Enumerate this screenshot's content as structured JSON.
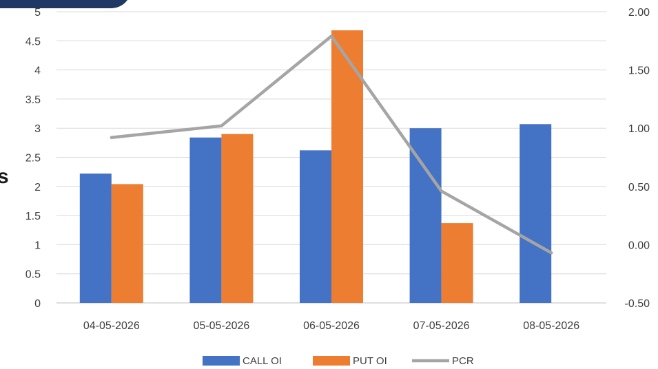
{
  "chart_data": {
    "type": "bar",
    "categories": [
      "04-05-2026",
      "05-05-2026",
      "06-05-2026",
      "07-05-2026",
      "08-05-2026"
    ],
    "series": [
      {
        "name": "CALL OI",
        "type": "bar",
        "axis": "left",
        "color": "#4472c4",
        "values": [
          2.22,
          2.84,
          2.62,
          3.0,
          3.07
        ]
      },
      {
        "name": "PUT OI",
        "type": "bar",
        "axis": "left",
        "color": "#ed7d31",
        "values": [
          2.04,
          2.9,
          4.68,
          1.37,
          0
        ]
      },
      {
        "name": "PCR",
        "type": "line",
        "axis": "right",
        "color": "#a5a5a5",
        "values": [
          0.92,
          1.02,
          1.79,
          0.46,
          -0.07
        ]
      }
    ],
    "y_left": {
      "min": 0,
      "max": 5,
      "ticks": [
        "0",
        "0.5",
        "1",
        "1.5",
        "2",
        "2.5",
        "3",
        "3.5",
        "4",
        "4.5",
        "5"
      ]
    },
    "y_right": {
      "min": -0.5,
      "max": 2.0,
      "ticks": [
        "-0.50",
        "0.00",
        "0.50",
        "1.00",
        "1.50",
        "2.00"
      ]
    },
    "grid": true,
    "legend_position": "bottom",
    "title": "",
    "xlabel": "",
    "ylabel": ""
  },
  "edge_glyph": "s"
}
